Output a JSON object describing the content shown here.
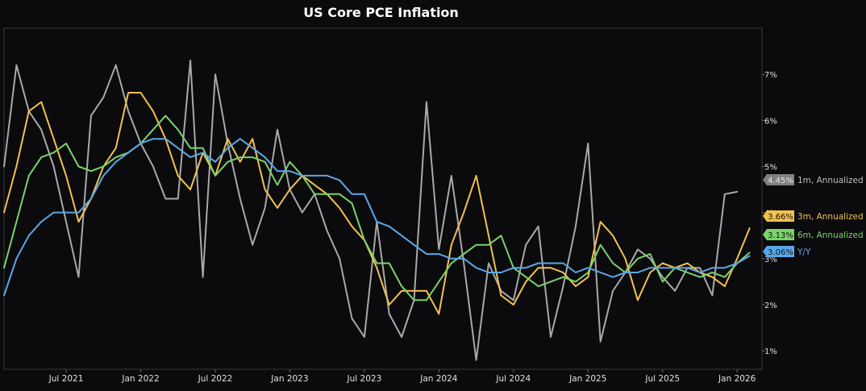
{
  "chart_data": {
    "type": "line",
    "title": "US Core PCE Inflation",
    "xlabel": "",
    "ylabel": "",
    "ylim": [
      0.6,
      8.0
    ],
    "y_ticks": [
      1,
      2,
      3,
      4,
      5,
      6,
      7
    ],
    "y_tick_labels": [
      "1%",
      "2%",
      "3%",
      "4%",
      "5%",
      "6%",
      "7%"
    ],
    "x_ticks": [
      {
        "idx": 5,
        "label": "Jul 2021"
      },
      {
        "idx": 11,
        "label": "Jan 2022"
      },
      {
        "idx": 17,
        "label": "Jul 2022"
      },
      {
        "idx": 23,
        "label": "Jan 2023"
      },
      {
        "idx": 29,
        "label": "Jul 2023"
      },
      {
        "idx": 35,
        "label": "Jan 2024"
      },
      {
        "idx": 41,
        "label": "Jul 2024"
      },
      {
        "idx": 47,
        "label": "Jan 2025"
      },
      {
        "idx": 53,
        "label": "Jul 2025"
      },
      {
        "idx": 59,
        "label": "Jan 2026"
      }
    ],
    "n_points": 62,
    "series": [
      {
        "name": "1m, Annualized",
        "color": "#a9a9a9",
        "tag_color": "#808080",
        "last_label": "4.45%",
        "values": [
          5.0,
          7.2,
          6.2,
          5.8,
          5.0,
          3.8,
          2.6,
          6.1,
          6.5,
          7.2,
          6.2,
          5.5,
          5.0,
          4.3,
          4.3,
          7.3,
          2.6,
          7.0,
          5.5,
          4.3,
          3.3,
          4.1,
          5.8,
          4.5,
          4.0,
          4.4,
          3.6,
          3.0,
          1.7,
          1.3,
          3.8,
          1.8,
          1.3,
          2.1,
          6.4,
          3.2,
          4.8,
          2.9,
          0.8,
          2.9,
          2.3,
          2.1,
          3.3,
          3.7,
          1.3,
          2.4,
          3.7,
          5.5,
          1.2,
          2.3,
          2.7,
          3.2,
          3.0,
          2.6,
          2.3,
          2.8,
          2.8,
          2.2,
          4.4,
          4.45
        ]
      },
      {
        "name": "3m, Annualized",
        "color": "#f2c14e",
        "tag_color": "#f2c14e",
        "last_label": "3.66%",
        "values": [
          4.0,
          5.0,
          6.2,
          6.4,
          5.6,
          4.8,
          3.8,
          4.3,
          5.0,
          5.4,
          6.6,
          6.6,
          6.2,
          5.6,
          4.8,
          4.5,
          5.3,
          4.8,
          5.6,
          5.1,
          5.6,
          4.5,
          4.1,
          4.5,
          4.8,
          4.6,
          4.4,
          4.1,
          3.7,
          3.4,
          2.8,
          2.0,
          2.3,
          2.3,
          2.3,
          1.8,
          3.3,
          4.0,
          4.8,
          3.5,
          2.2,
          2.0,
          2.5,
          2.8,
          2.8,
          2.7,
          2.4,
          2.6,
          3.8,
          3.5,
          3.0,
          2.1,
          2.7,
          2.9,
          2.8,
          2.9,
          2.7,
          2.6,
          2.4,
          3.0,
          3.66
        ]
      },
      {
        "name": "6m, Annualized",
        "color": "#79d36a",
        "tag_color": "#79d36a",
        "last_label": "3.13%",
        "values": [
          2.8,
          3.8,
          4.8,
          5.2,
          5.3,
          5.5,
          5.0,
          4.9,
          5.0,
          5.2,
          5.3,
          5.5,
          5.8,
          6.1,
          5.8,
          5.4,
          5.4,
          4.8,
          5.1,
          5.2,
          5.2,
          5.1,
          4.6,
          5.1,
          4.8,
          4.4,
          4.4,
          4.4,
          4.2,
          3.4,
          2.9,
          2.9,
          2.4,
          2.1,
          2.1,
          2.5,
          2.9,
          3.1,
          3.3,
          3.3,
          3.5,
          2.8,
          2.6,
          2.4,
          2.5,
          2.6,
          2.5,
          2.7,
          3.3,
          2.9,
          2.7,
          3.0,
          3.1,
          2.5,
          2.8,
          2.7,
          2.6,
          2.7,
          2.6,
          2.9,
          3.13
        ]
      },
      {
        "name": "Y/Y",
        "color": "#5aa7e8",
        "tag_color": "#5aa7e8",
        "last_label": "3.06%",
        "values": [
          2.2,
          3.0,
          3.5,
          3.8,
          4.0,
          4.0,
          4.0,
          4.3,
          4.8,
          5.1,
          5.3,
          5.5,
          5.6,
          5.6,
          5.4,
          5.2,
          5.3,
          5.1,
          5.4,
          5.6,
          5.4,
          5.2,
          4.9,
          4.9,
          4.8,
          4.8,
          4.8,
          4.7,
          4.4,
          4.4,
          3.8,
          3.7,
          3.5,
          3.3,
          3.1,
          3.1,
          3.0,
          3.0,
          2.8,
          2.7,
          2.7,
          2.8,
          2.8,
          2.9,
          2.9,
          2.9,
          2.7,
          2.8,
          2.7,
          2.6,
          2.7,
          2.7,
          2.8,
          2.8,
          2.8,
          2.8,
          2.7,
          2.8,
          2.8,
          2.9,
          3.06
        ]
      }
    ]
  }
}
